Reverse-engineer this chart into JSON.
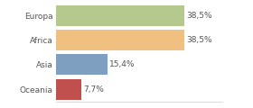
{
  "categories": [
    "Europa",
    "Africa",
    "Asia",
    "Oceania"
  ],
  "values": [
    38.5,
    38.5,
    15.4,
    7.7
  ],
  "labels": [
    "38,5%",
    "38,5%",
    "15,4%",
    "7,7%"
  ],
  "bar_colors": [
    "#b5c98e",
    "#f0c080",
    "#7f9fc0",
    "#c0504d"
  ],
  "background_color": "#ffffff",
  "xlim": [
    0,
    50
  ],
  "label_fontsize": 6.5,
  "tick_fontsize": 6.5,
  "bar_height": 0.85
}
